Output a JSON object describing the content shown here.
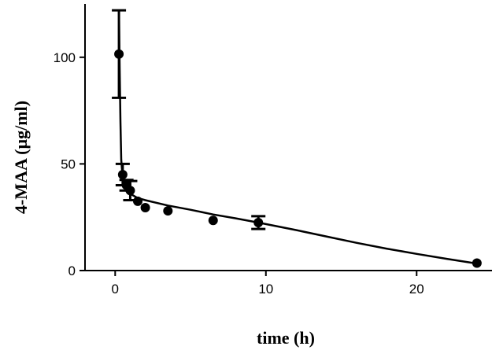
{
  "chart_data": {
    "type": "scatter",
    "title": "",
    "xlabel": "time (h)",
    "ylabel": "4-MAA (µg/ml)",
    "xlim": [
      -2,
      25
    ],
    "ylim": [
      0,
      125
    ],
    "xticks": [
      0,
      10,
      20
    ],
    "yticks": [
      0,
      50,
      100
    ],
    "grid": false,
    "legend": "none",
    "series": [
      {
        "points": [
          {
            "x": 0.25,
            "y": 101.5,
            "err": 20.5
          },
          {
            "x": 0.5,
            "y": 45,
            "err": 5
          },
          {
            "x": 0.75,
            "y": 40,
            "err": 2.5
          },
          {
            "x": 1.0,
            "y": 37.5,
            "err": 4.5
          },
          {
            "x": 1.5,
            "y": 32.5,
            "err": 1
          },
          {
            "x": 2.0,
            "y": 29.5,
            "err": 1
          },
          {
            "x": 3.5,
            "y": 28,
            "err": 0.8
          },
          {
            "x": 6.5,
            "y": 23.5,
            "err": 0.8
          },
          {
            "x": 9.5,
            "y": 22.5,
            "err": 3
          },
          {
            "x": 24.0,
            "y": 3.5,
            "err": 0.5
          }
        ],
        "fit_curve": [
          {
            "x": 0.25,
            "y": 122
          },
          {
            "x": 0.3,
            "y": 95
          },
          {
            "x": 0.35,
            "y": 70
          },
          {
            "x": 0.4,
            "y": 52
          },
          {
            "x": 0.5,
            "y": 43
          },
          {
            "x": 0.75,
            "y": 38
          },
          {
            "x": 1.0,
            "y": 36
          },
          {
            "x": 1.5,
            "y": 34
          },
          {
            "x": 2.0,
            "y": 33
          },
          {
            "x": 3.5,
            "y": 30.5
          },
          {
            "x": 5.0,
            "y": 28.5
          },
          {
            "x": 6.5,
            "y": 26.3
          },
          {
            "x": 8.0,
            "y": 24.5
          },
          {
            "x": 9.5,
            "y": 22.5
          },
          {
            "x": 12.0,
            "y": 19
          },
          {
            "x": 14.0,
            "y": 16
          },
          {
            "x": 16.0,
            "y": 13
          },
          {
            "x": 18.0,
            "y": 10.3
          },
          {
            "x": 20.0,
            "y": 7.8
          },
          {
            "x": 22.0,
            "y": 5.5
          },
          {
            "x": 24.0,
            "y": 3.3
          }
        ]
      }
    ],
    "color": "#000000"
  }
}
